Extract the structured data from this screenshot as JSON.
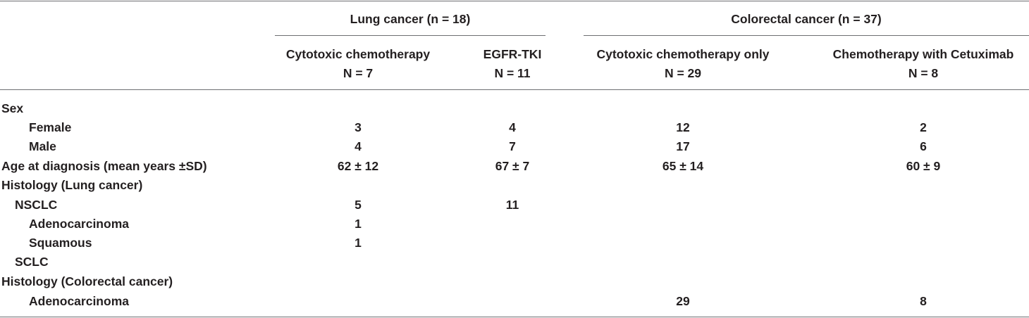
{
  "groups": [
    {
      "label": "Lung cancer (n = 18)",
      "columns": [
        {
          "name": "Cytotoxic chemotherapy",
          "n": "N = 7"
        },
        {
          "name": "EGFR-TKI",
          "n": "N = 11"
        }
      ]
    },
    {
      "label": "Colorectal cancer (n = 37)",
      "columns": [
        {
          "name": "Cytotoxic chemotherapy only",
          "n": "N = 29"
        },
        {
          "name": "Chemotherapy with Cetuximab",
          "n": "N = 8"
        }
      ]
    }
  ],
  "rows": [
    {
      "label": "Sex",
      "values": [
        "",
        "",
        "",
        ""
      ]
    },
    {
      "label": "Female",
      "values": [
        "3",
        "4",
        "12",
        "2"
      ]
    },
    {
      "label": "Male",
      "values": [
        "4",
        "7",
        "17",
        "6"
      ]
    },
    {
      "label": "Age at diagnosis (mean years ±SD)",
      "values": [
        "62 ± 12",
        "67 ± 7",
        "65 ± 14",
        "60 ± 9"
      ]
    },
    {
      "label": "Histology (Lung cancer)",
      "values": [
        "",
        "",
        "",
        ""
      ]
    },
    {
      "label": "NSCLC",
      "values": [
        "5",
        "11",
        "",
        ""
      ]
    },
    {
      "label": "Adenocarcinoma",
      "values": [
        "1",
        "",
        "",
        ""
      ]
    },
    {
      "label": "Squamous",
      "values": [
        "1",
        "",
        "",
        ""
      ]
    },
    {
      "label": "SCLC",
      "values": [
        "",
        "",
        "",
        ""
      ]
    },
    {
      "label": "Histology (Colorectal cancer)",
      "values": [
        "",
        "",
        "",
        ""
      ]
    },
    {
      "label": "Adenocarcinoma",
      "values": [
        "",
        "",
        "29",
        "8"
      ]
    }
  ]
}
